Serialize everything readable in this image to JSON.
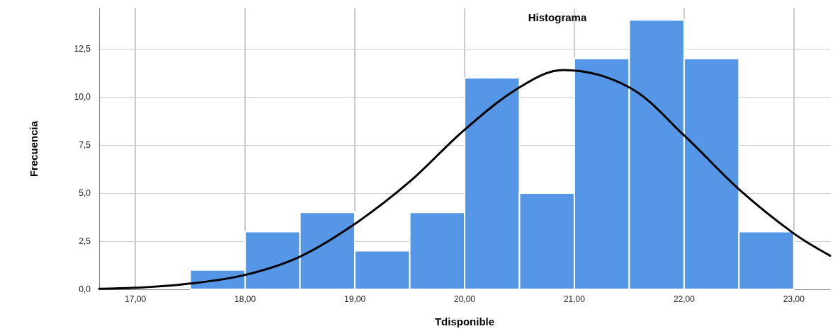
{
  "chart_data": {
    "type": "histogram",
    "title": "Histograma",
    "xlabel": "Tdisponible",
    "ylabel": "Frecuencia",
    "bins": [
      17.5,
      18,
      18.5,
      19,
      19.5,
      20,
      20.5,
      21,
      21.5,
      22,
      22.5,
      23
    ],
    "series": [
      {
        "color": "#5596e6",
        "values": [
          1,
          3,
          4,
          2,
          4,
          11,
          5,
          12,
          14,
          12,
          3
        ]
      },
      {
        "type": "line",
        "color": "#000000",
        "x": [
          16.67,
          17,
          17.5,
          18,
          18.5,
          19,
          19.5,
          20,
          20.5,
          20.9,
          21.5,
          22,
          22.5,
          23,
          23.33
        ],
        "values": [
          0.03,
          0.08,
          0.3,
          0.75,
          1.7,
          3.4,
          5.6,
          8.3,
          10.5,
          11.4,
          10.5,
          8.0,
          5.2,
          2.9,
          1.75
        ]
      }
    ],
    "xlim": [
      16.67,
      23.33
    ],
    "xticks": [
      {
        "value": 17,
        "label": "17,00"
      },
      {
        "value": 18,
        "label": "18,00"
      },
      {
        "value": 19,
        "label": "19,00"
      },
      {
        "value": 20,
        "label": "20,00"
      },
      {
        "value": 21,
        "label": "21,00"
      },
      {
        "value": 22,
        "label": "22,00"
      },
      {
        "value": 23,
        "label": "23,00"
      }
    ],
    "ylim": [
      0,
      14.6
    ],
    "yticks": [
      {
        "value": 0,
        "label": "0,0"
      },
      {
        "value": 2.5,
        "label": "2,5"
      },
      {
        "value": 5,
        "label": "5,0"
      },
      {
        "value": 7.5,
        "label": "7,5"
      },
      {
        "value": 10,
        "label": "10,0"
      },
      {
        "value": 12.5,
        "label": "12,5"
      }
    ],
    "grid": true,
    "marker": "none",
    "line_style": "solid"
  }
}
